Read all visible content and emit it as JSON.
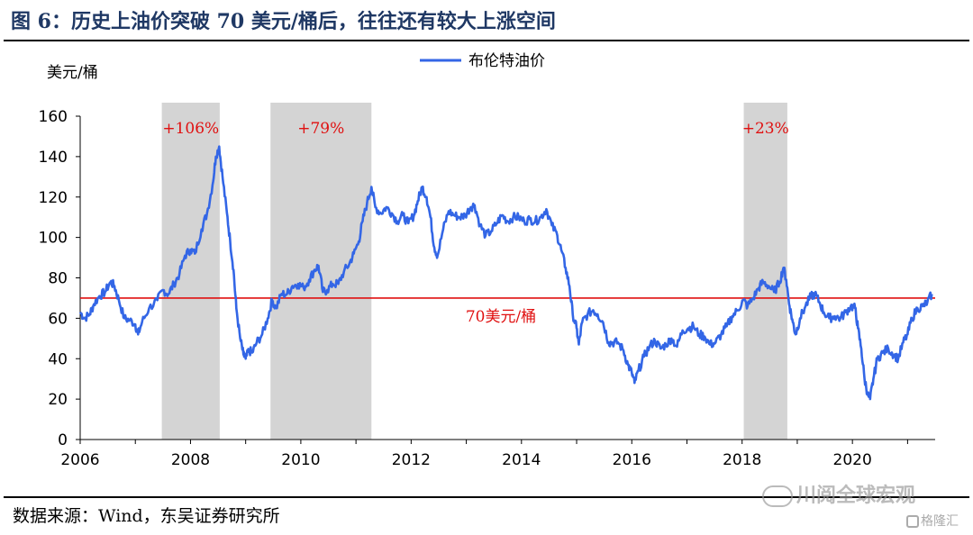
{
  "figure_title": "图 6：历史上油价突破 70 美元/桶后，往往还有较大上涨空间",
  "source": "数据来源：Wind，东吴证券研究所",
  "watermark": "川阅全球宏观",
  "logo_text": "格隆汇",
  "chart_data": {
    "type": "line",
    "ylabel": "美元/桶",
    "ylim": [
      0,
      160
    ],
    "yticks": [
      0,
      20,
      40,
      60,
      80,
      100,
      120,
      140,
      160
    ],
    "xlim": [
      2006,
      2021.5
    ],
    "xticks": [
      "2006",
      "2008",
      "2010",
      "2012",
      "2014",
      "2016",
      "2018",
      "2020"
    ],
    "legend": "布伦特油价",
    "colors": {
      "series": "#3366e6",
      "threshold": "#e01010",
      "shade": "#d4d4d4",
      "annotation": "#e01010"
    },
    "threshold": {
      "value": 70,
      "label": "70美元/桶"
    },
    "shaded_periods": [
      {
        "start": 2007.48,
        "end": 2008.53,
        "label": "+106%"
      },
      {
        "start": 2009.45,
        "end": 2011.28,
        "label": "+79%"
      },
      {
        "start": 2018.03,
        "end": 2018.82,
        "label": "+23%"
      }
    ],
    "series": [
      {
        "name": "布伦特油价",
        "points": [
          [
            2006.0,
            63
          ],
          [
            2006.08,
            60
          ],
          [
            2006.17,
            62
          ],
          [
            2006.25,
            67
          ],
          [
            2006.35,
            71
          ],
          [
            2006.45,
            73
          ],
          [
            2006.55,
            78
          ],
          [
            2006.62,
            76
          ],
          [
            2006.7,
            69
          ],
          [
            2006.8,
            60
          ],
          [
            2006.9,
            59
          ],
          [
            2007.0,
            57
          ],
          [
            2007.05,
            52
          ],
          [
            2007.12,
            58
          ],
          [
            2007.25,
            65
          ],
          [
            2007.4,
            69
          ],
          [
            2007.5,
            74
          ],
          [
            2007.6,
            72
          ],
          [
            2007.7,
            77
          ],
          [
            2007.8,
            82
          ],
          [
            2007.9,
            91
          ],
          [
            2008.0,
            94
          ],
          [
            2008.08,
            92
          ],
          [
            2008.2,
            104
          ],
          [
            2008.3,
            112
          ],
          [
            2008.4,
            126
          ],
          [
            2008.46,
            140
          ],
          [
            2008.52,
            145
          ],
          [
            2008.58,
            130
          ],
          [
            2008.66,
            112
          ],
          [
            2008.72,
            98
          ],
          [
            2008.78,
            84
          ],
          [
            2008.83,
            65
          ],
          [
            2008.9,
            50
          ],
          [
            2008.96,
            42
          ],
          [
            2009.0,
            40
          ],
          [
            2009.06,
            44
          ],
          [
            2009.12,
            43
          ],
          [
            2009.2,
            48
          ],
          [
            2009.3,
            52
          ],
          [
            2009.4,
            60
          ],
          [
            2009.48,
            69
          ],
          [
            2009.55,
            65
          ],
          [
            2009.65,
            72
          ],
          [
            2009.75,
            72
          ],
          [
            2009.85,
            76
          ],
          [
            2009.95,
            77
          ],
          [
            2010.05,
            75
          ],
          [
            2010.15,
            79
          ],
          [
            2010.25,
            84
          ],
          [
            2010.32,
            86
          ],
          [
            2010.4,
            73
          ],
          [
            2010.48,
            74
          ],
          [
            2010.58,
            77
          ],
          [
            2010.68,
            77
          ],
          [
            2010.78,
            83
          ],
          [
            2010.88,
            87
          ],
          [
            2010.96,
            92
          ],
          [
            2011.05,
            98
          ],
          [
            2011.12,
            108
          ],
          [
            2011.2,
            117
          ],
          [
            2011.28,
            125
          ],
          [
            2011.35,
            115
          ],
          [
            2011.45,
            112
          ],
          [
            2011.55,
            115
          ],
          [
            2011.65,
            112
          ],
          [
            2011.75,
            108
          ],
          [
            2011.85,
            111
          ],
          [
            2011.95,
            107
          ],
          [
            2012.05,
            111
          ],
          [
            2012.12,
            118
          ],
          [
            2012.2,
            125
          ],
          [
            2012.28,
            120
          ],
          [
            2012.35,
            110
          ],
          [
            2012.42,
            95
          ],
          [
            2012.48,
            91
          ],
          [
            2012.58,
            104
          ],
          [
            2012.68,
            113
          ],
          [
            2012.78,
            111
          ],
          [
            2012.88,
            110
          ],
          [
            2012.98,
            111
          ],
          [
            2013.08,
            115
          ],
          [
            2013.15,
            116
          ],
          [
            2013.25,
            106
          ],
          [
            2013.35,
            101
          ],
          [
            2013.45,
            103
          ],
          [
            2013.55,
            107
          ],
          [
            2013.65,
            111
          ],
          [
            2013.75,
            108
          ],
          [
            2013.85,
            110
          ],
          [
            2013.95,
            110
          ],
          [
            2014.05,
            108
          ],
          [
            2014.15,
            109
          ],
          [
            2014.25,
            108
          ],
          [
            2014.35,
            110
          ],
          [
            2014.45,
            114
          ],
          [
            2014.55,
            106
          ],
          [
            2014.65,
            101
          ],
          [
            2014.72,
            94
          ],
          [
            2014.8,
            85
          ],
          [
            2014.87,
            76
          ],
          [
            2014.93,
            62
          ],
          [
            2015.0,
            55
          ],
          [
            2015.04,
            47
          ],
          [
            2015.1,
            58
          ],
          [
            2015.2,
            62
          ],
          [
            2015.3,
            64
          ],
          [
            2015.38,
            62
          ],
          [
            2015.48,
            58
          ],
          [
            2015.58,
            48
          ],
          [
            2015.65,
            48
          ],
          [
            2015.75,
            48
          ],
          [
            2015.85,
            44
          ],
          [
            2015.93,
            37
          ],
          [
            2016.0,
            33
          ],
          [
            2016.05,
            28
          ],
          [
            2016.12,
            34
          ],
          [
            2016.22,
            41
          ],
          [
            2016.32,
            46
          ],
          [
            2016.42,
            49
          ],
          [
            2016.52,
            45
          ],
          [
            2016.62,
            47
          ],
          [
            2016.72,
            50
          ],
          [
            2016.82,
            46
          ],
          [
            2016.92,
            54
          ],
          [
            2017.02,
            55
          ],
          [
            2017.12,
            56
          ],
          [
            2017.22,
            52
          ],
          [
            2017.32,
            51
          ],
          [
            2017.42,
            47
          ],
          [
            2017.52,
            48
          ],
          [
            2017.62,
            52
          ],
          [
            2017.72,
            56
          ],
          [
            2017.82,
            61
          ],
          [
            2017.92,
            64
          ],
          [
            2018.02,
            69
          ],
          [
            2018.1,
            66
          ],
          [
            2018.2,
            70
          ],
          [
            2018.3,
            75
          ],
          [
            2018.38,
            78
          ],
          [
            2018.48,
            76
          ],
          [
            2018.58,
            73
          ],
          [
            2018.68,
            78
          ],
          [
            2018.75,
            85
          ],
          [
            2018.8,
            79
          ],
          [
            2018.86,
            66
          ],
          [
            2018.92,
            58
          ],
          [
            2018.97,
            52
          ],
          [
            2019.05,
            60
          ],
          [
            2019.15,
            66
          ],
          [
            2019.25,
            71
          ],
          [
            2019.32,
            72
          ],
          [
            2019.4,
            68
          ],
          [
            2019.48,
            63
          ],
          [
            2019.58,
            60
          ],
          [
            2019.68,
            61
          ],
          [
            2019.78,
            60
          ],
          [
            2019.88,
            63
          ],
          [
            2019.97,
            66
          ],
          [
            2020.05,
            65
          ],
          [
            2020.1,
            55
          ],
          [
            2020.16,
            45
          ],
          [
            2020.22,
            30
          ],
          [
            2020.28,
            22
          ],
          [
            2020.32,
            20
          ],
          [
            2020.38,
            30
          ],
          [
            2020.45,
            40
          ],
          [
            2020.55,
            43
          ],
          [
            2020.65,
            45
          ],
          [
            2020.75,
            42
          ],
          [
            2020.83,
            40
          ],
          [
            2020.92,
            48
          ],
          [
            2021.0,
            52
          ],
          [
            2021.08,
            60
          ],
          [
            2021.18,
            65
          ],
          [
            2021.28,
            66
          ],
          [
            2021.36,
            68
          ],
          [
            2021.44,
            72
          ]
        ]
      }
    ]
  }
}
